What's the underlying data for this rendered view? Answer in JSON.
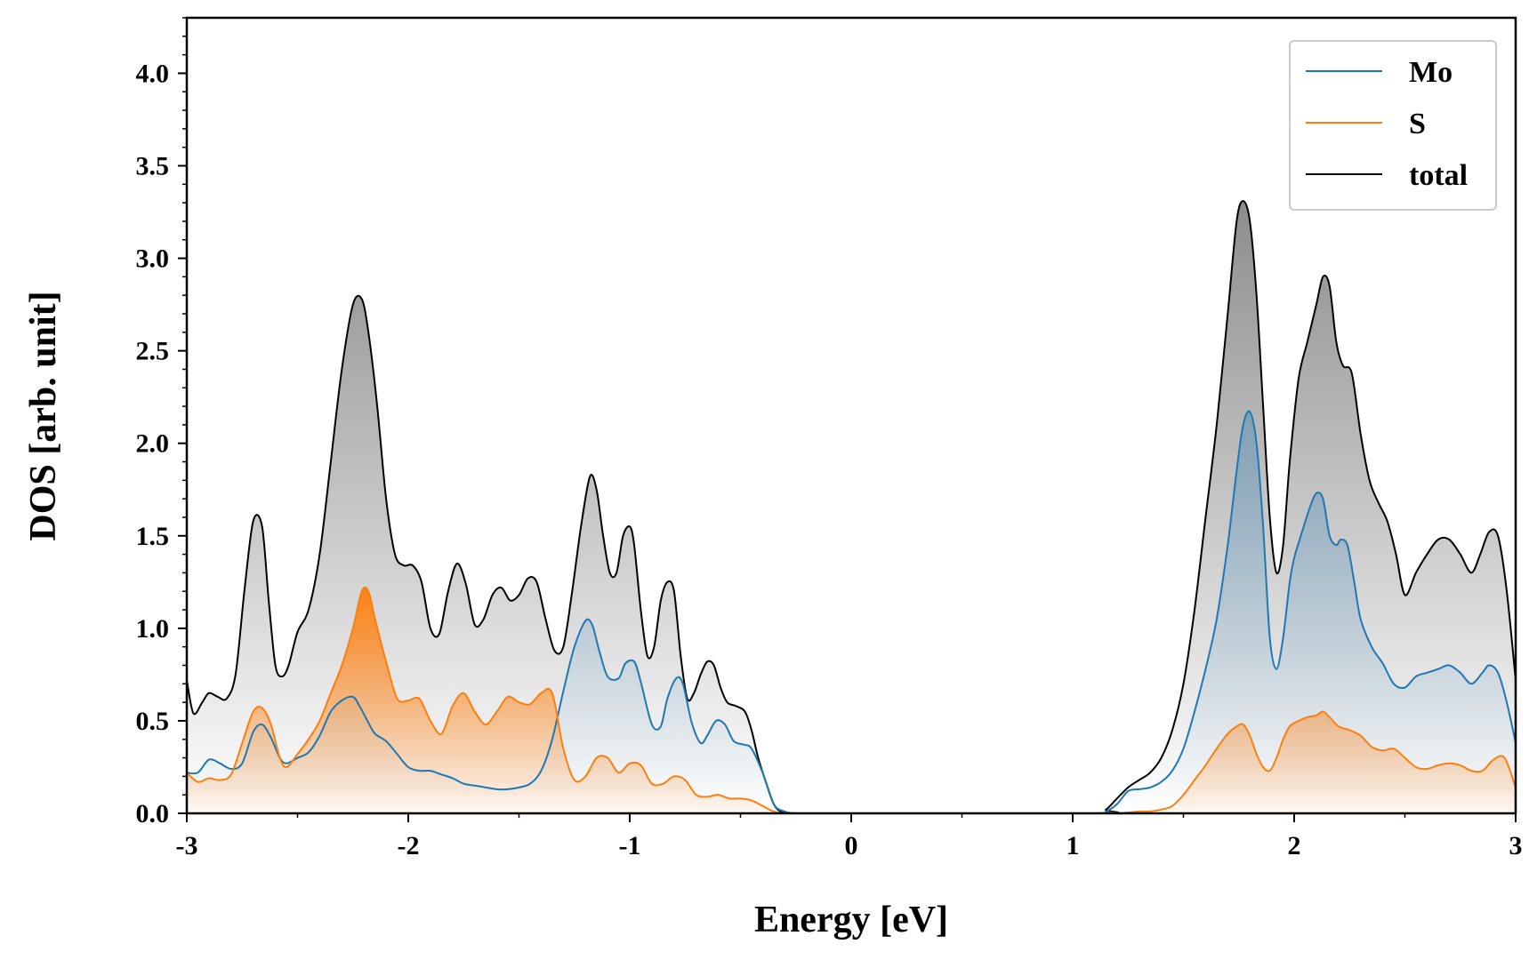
{
  "chart_data": {
    "type": "line",
    "title": "",
    "xlabel": "Energy [eV]",
    "ylabel": "DOS [arb. unit]",
    "xlim": [
      -3,
      3
    ],
    "ylim": [
      0,
      4.3
    ],
    "xticks": [
      -3,
      -2,
      -1,
      0,
      1,
      2,
      3
    ],
    "xtick_labels": [
      "-3",
      "-2",
      "-1",
      "0",
      "1",
      "2",
      "3"
    ],
    "yticks": [
      0.0,
      0.5,
      1.0,
      1.5,
      2.0,
      2.5,
      3.0,
      3.5,
      4.0
    ],
    "ytick_labels": [
      "0.0",
      "0.5",
      "1.0",
      "1.5",
      "2.0",
      "2.5",
      "3.0",
      "3.5",
      "4.0"
    ],
    "grid": false,
    "legend_position": "top-right",
    "series": [
      {
        "name": "Mo",
        "color": "#1f77b4",
        "fill": true,
        "x": [
          -3.0,
          -2.95,
          -2.9,
          -2.85,
          -2.8,
          -2.75,
          -2.7,
          -2.66,
          -2.62,
          -2.58,
          -2.55,
          -2.5,
          -2.45,
          -2.4,
          -2.35,
          -2.3,
          -2.25,
          -2.22,
          -2.18,
          -2.15,
          -2.1,
          -2.05,
          -2.0,
          -1.95,
          -1.9,
          -1.85,
          -1.8,
          -1.75,
          -1.7,
          -1.65,
          -1.6,
          -1.55,
          -1.5,
          -1.45,
          -1.4,
          -1.35,
          -1.3,
          -1.25,
          -1.2,
          -1.17,
          -1.14,
          -1.1,
          -1.05,
          -1.02,
          -0.98,
          -0.95,
          -0.9,
          -0.86,
          -0.83,
          -0.79,
          -0.76,
          -0.72,
          -0.68,
          -0.65,
          -0.61,
          -0.57,
          -0.53,
          -0.48,
          -0.45,
          -0.4,
          -0.35,
          -0.3,
          -0.25,
          -0.2,
          1.1,
          1.15,
          1.2,
          1.25,
          1.3,
          1.35,
          1.4,
          1.45,
          1.5,
          1.55,
          1.6,
          1.65,
          1.7,
          1.74,
          1.77,
          1.8,
          1.83,
          1.86,
          1.89,
          1.92,
          1.95,
          1.98,
          2.0,
          2.03,
          2.07,
          2.1,
          2.13,
          2.16,
          2.19,
          2.21,
          2.24,
          2.27,
          2.3,
          2.35,
          2.4,
          2.45,
          2.5,
          2.55,
          2.6,
          2.65,
          2.7,
          2.75,
          2.8,
          2.85,
          2.88,
          2.92,
          2.96,
          3.0
        ],
        "y": [
          0.22,
          0.22,
          0.29,
          0.27,
          0.24,
          0.27,
          0.44,
          0.48,
          0.41,
          0.3,
          0.27,
          0.3,
          0.33,
          0.42,
          0.55,
          0.61,
          0.63,
          0.58,
          0.49,
          0.43,
          0.39,
          0.32,
          0.25,
          0.23,
          0.23,
          0.21,
          0.19,
          0.16,
          0.15,
          0.14,
          0.13,
          0.13,
          0.14,
          0.16,
          0.23,
          0.4,
          0.66,
          0.9,
          1.04,
          1.02,
          0.89,
          0.74,
          0.73,
          0.81,
          0.82,
          0.71,
          0.48,
          0.47,
          0.62,
          0.73,
          0.7,
          0.49,
          0.38,
          0.42,
          0.5,
          0.48,
          0.39,
          0.37,
          0.35,
          0.22,
          0.05,
          0.01,
          0.0,
          0.0,
          0.0,
          0.01,
          0.05,
          0.12,
          0.13,
          0.14,
          0.17,
          0.23,
          0.35,
          0.55,
          0.78,
          1.05,
          1.45,
          1.85,
          2.1,
          2.17,
          2.0,
          1.55,
          0.95,
          0.78,
          0.95,
          1.25,
          1.38,
          1.5,
          1.65,
          1.73,
          1.7,
          1.5,
          1.45,
          1.48,
          1.45,
          1.26,
          1.05,
          0.9,
          0.81,
          0.7,
          0.68,
          0.74,
          0.76,
          0.78,
          0.8,
          0.76,
          0.7,
          0.76,
          0.8,
          0.76,
          0.6,
          0.38
        ]
      },
      {
        "name": "S",
        "color": "#ff7f0e",
        "fill": true,
        "x": [
          -3.0,
          -2.95,
          -2.9,
          -2.85,
          -2.8,
          -2.75,
          -2.7,
          -2.66,
          -2.62,
          -2.58,
          -2.55,
          -2.5,
          -2.45,
          -2.4,
          -2.35,
          -2.3,
          -2.25,
          -2.21,
          -2.18,
          -2.15,
          -2.1,
          -2.05,
          -2.0,
          -1.95,
          -1.9,
          -1.85,
          -1.8,
          -1.75,
          -1.7,
          -1.65,
          -1.6,
          -1.55,
          -1.5,
          -1.45,
          -1.4,
          -1.35,
          -1.3,
          -1.25,
          -1.2,
          -1.15,
          -1.1,
          -1.05,
          -1.0,
          -0.95,
          -0.9,
          -0.85,
          -0.8,
          -0.75,
          -0.7,
          -0.65,
          -0.6,
          -0.55,
          -0.5,
          -0.45,
          -0.4,
          -0.35,
          -0.3,
          -0.25,
          1.1,
          1.2,
          1.3,
          1.35,
          1.4,
          1.45,
          1.5,
          1.55,
          1.6,
          1.65,
          1.7,
          1.74,
          1.77,
          1.8,
          1.83,
          1.86,
          1.89,
          1.92,
          1.95,
          1.98,
          2.02,
          2.06,
          2.1,
          2.13,
          2.16,
          2.2,
          2.25,
          2.3,
          2.35,
          2.4,
          2.45,
          2.5,
          2.55,
          2.6,
          2.65,
          2.7,
          2.75,
          2.8,
          2.85,
          2.9,
          2.95,
          3.0
        ],
        "y": [
          0.22,
          0.17,
          0.19,
          0.18,
          0.21,
          0.38,
          0.55,
          0.57,
          0.48,
          0.3,
          0.25,
          0.32,
          0.4,
          0.5,
          0.65,
          0.8,
          1.0,
          1.2,
          1.2,
          1.05,
          0.82,
          0.62,
          0.61,
          0.62,
          0.5,
          0.43,
          0.58,
          0.65,
          0.55,
          0.48,
          0.55,
          0.63,
          0.6,
          0.59,
          0.65,
          0.65,
          0.35,
          0.18,
          0.2,
          0.3,
          0.3,
          0.22,
          0.27,
          0.26,
          0.16,
          0.16,
          0.2,
          0.18,
          0.1,
          0.09,
          0.1,
          0.08,
          0.08,
          0.07,
          0.04,
          0.01,
          0.0,
          0.0,
          0.0,
          0.0,
          0.01,
          0.01,
          0.02,
          0.04,
          0.1,
          0.18,
          0.26,
          0.35,
          0.43,
          0.47,
          0.48,
          0.42,
          0.32,
          0.25,
          0.23,
          0.3,
          0.4,
          0.47,
          0.5,
          0.52,
          0.53,
          0.55,
          0.52,
          0.47,
          0.45,
          0.42,
          0.36,
          0.34,
          0.35,
          0.3,
          0.25,
          0.24,
          0.26,
          0.27,
          0.26,
          0.23,
          0.23,
          0.29,
          0.3,
          0.14
        ]
      },
      {
        "name": "total",
        "color": "#000000",
        "fill": true,
        "x": [
          -3.0,
          -2.97,
          -2.93,
          -2.9,
          -2.86,
          -2.82,
          -2.78,
          -2.74,
          -2.7,
          -2.66,
          -2.63,
          -2.6,
          -2.57,
          -2.54,
          -2.5,
          -2.45,
          -2.4,
          -2.35,
          -2.3,
          -2.25,
          -2.21,
          -2.18,
          -2.14,
          -2.1,
          -2.06,
          -2.02,
          -1.98,
          -1.94,
          -1.9,
          -1.86,
          -1.82,
          -1.78,
          -1.74,
          -1.7,
          -1.66,
          -1.62,
          -1.58,
          -1.54,
          -1.5,
          -1.46,
          -1.42,
          -1.38,
          -1.34,
          -1.3,
          -1.26,
          -1.22,
          -1.18,
          -1.15,
          -1.12,
          -1.09,
          -1.06,
          -1.03,
          -1.0,
          -0.98,
          -0.95,
          -0.92,
          -0.89,
          -0.86,
          -0.83,
          -0.8,
          -0.77,
          -0.74,
          -0.71,
          -0.68,
          -0.65,
          -0.62,
          -0.59,
          -0.56,
          -0.52,
          -0.48,
          -0.45,
          -0.42,
          -0.38,
          -0.35,
          -0.32,
          -0.28,
          -0.25,
          -0.2,
          1.1,
          1.15,
          1.2,
          1.25,
          1.3,
          1.35,
          1.4,
          1.45,
          1.5,
          1.55,
          1.6,
          1.65,
          1.7,
          1.74,
          1.77,
          1.8,
          1.83,
          1.86,
          1.89,
          1.92,
          1.95,
          1.98,
          2.02,
          2.06,
          2.1,
          2.13,
          2.16,
          2.19,
          2.22,
          2.26,
          2.3,
          2.34,
          2.38,
          2.42,
          2.46,
          2.5,
          2.55,
          2.6,
          2.65,
          2.7,
          2.75,
          2.8,
          2.84,
          2.88,
          2.92,
          2.96,
          3.0
        ],
        "y": [
          0.72,
          0.54,
          0.6,
          0.65,
          0.63,
          0.62,
          0.75,
          1.2,
          1.58,
          1.55,
          1.15,
          0.8,
          0.74,
          0.8,
          0.98,
          1.1,
          1.4,
          1.9,
          2.4,
          2.75,
          2.78,
          2.6,
          2.2,
          1.7,
          1.4,
          1.34,
          1.34,
          1.25,
          1.0,
          0.97,
          1.2,
          1.35,
          1.24,
          1.02,
          1.05,
          1.18,
          1.22,
          1.15,
          1.18,
          1.27,
          1.25,
          1.05,
          0.88,
          0.9,
          1.2,
          1.55,
          1.82,
          1.75,
          1.5,
          1.3,
          1.3,
          1.5,
          1.55,
          1.45,
          1.1,
          0.85,
          0.9,
          1.15,
          1.25,
          1.2,
          0.85,
          0.62,
          0.65,
          0.75,
          0.82,
          0.8,
          0.68,
          0.6,
          0.58,
          0.55,
          0.45,
          0.3,
          0.15,
          0.05,
          0.01,
          0.0,
          0.0,
          0.0,
          0.0,
          0.02,
          0.08,
          0.14,
          0.18,
          0.22,
          0.3,
          0.45,
          0.7,
          1.1,
          1.6,
          2.1,
          2.7,
          3.2,
          3.31,
          3.2,
          2.8,
          2.2,
          1.6,
          1.3,
          1.45,
          1.9,
          2.35,
          2.55,
          2.75,
          2.9,
          2.85,
          2.55,
          2.42,
          2.38,
          2.05,
          1.8,
          1.68,
          1.58,
          1.4,
          1.18,
          1.3,
          1.4,
          1.48,
          1.48,
          1.4,
          1.3,
          1.4,
          1.52,
          1.5,
          1.2,
          0.72
        ]
      }
    ]
  }
}
